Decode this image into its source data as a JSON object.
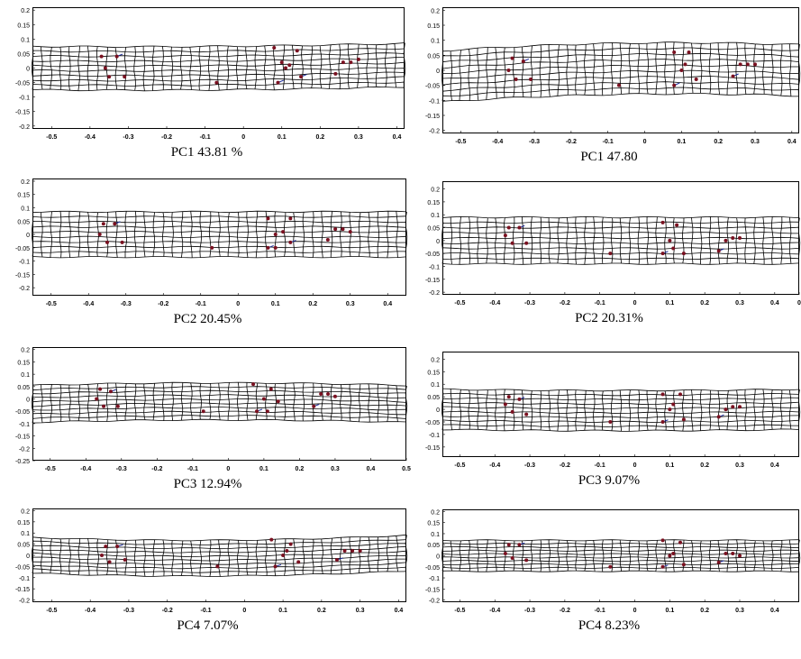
{
  "figure": {
    "panels": [
      {
        "caption": "PC1 43.81 %",
        "xticks": [
          "-0.5",
          "-0.4",
          "-0.3",
          "-0.2",
          "-0.1",
          "0",
          "0.1",
          "0.2",
          "0.3",
          "0.4"
        ],
        "yticks": [
          "0.2",
          "0.15",
          "0.1",
          "0.05",
          "0",
          "-0.05",
          "-0.1",
          "-0.15",
          "-0.2"
        ]
      },
      {
        "caption": "PC1 47.80",
        "xticks": [
          "-0.5",
          "-0.4",
          "-0.3",
          "-0.2",
          "-0.1",
          "0",
          "0.1",
          "0.2",
          "0.3",
          "0.4"
        ],
        "yticks": [
          "0.2",
          "0.15",
          "0.1",
          "0.05",
          "0",
          "-0.05",
          "-0.1",
          "-0.15",
          "-0.2"
        ]
      },
      {
        "caption": "PC2 20.45%",
        "xticks": [
          "-0.5",
          "-0.4",
          "-0.3",
          "-0.2",
          "-0.1",
          "0",
          "0.1",
          "0.2",
          "0.3",
          "0.4"
        ],
        "yticks": [
          "0.2",
          "0.15",
          "0.1",
          "0.05",
          "0",
          "-0.05",
          "-0.1",
          "-0.15",
          "-0.2"
        ]
      },
      {
        "caption": "PC2 20.31%",
        "xticks": [
          "-0.5",
          "-0.4",
          "-0.3",
          "-0.2",
          "-0.1",
          "0",
          "0.1",
          "0.2",
          "0.3",
          "0.4",
          "0"
        ],
        "yticks": [
          "0.2",
          "0.15",
          "0.1",
          "0.05",
          "0",
          "-0.05",
          "-0.1",
          "-0.15",
          "-0.2"
        ]
      },
      {
        "caption": "PC3 12.94%",
        "xticks": [
          "-0.5",
          "-0.4",
          "-0.3",
          "-0.2",
          "-0.1",
          "0",
          "0.1",
          "0.2",
          "0.3",
          "0.4",
          "0.5"
        ],
        "yticks": [
          "0.2",
          "0.15",
          "0.1",
          "0.05",
          "0",
          "-0.05",
          "-0.1",
          "-0.15",
          "-0.2",
          "-0.25"
        ]
      },
      {
        "caption": "PC3 9.07%",
        "xticks": [
          "-0.5",
          "-0.4",
          "-0.3",
          "-0.2",
          "-0.1",
          "0",
          "0.1",
          "0.2",
          "0.3",
          "0.4"
        ],
        "yticks": [
          "0.2",
          "0.15",
          "0.1",
          "0.05",
          "0",
          "-0.05",
          "-0.1",
          "-0.15"
        ]
      },
      {
        "caption": "PC4 7.07%",
        "xticks": [
          "-0.5",
          "-0.4",
          "-0.3",
          "-0.2",
          "-0.1",
          "0",
          "0.1",
          "0.2",
          "0.3",
          "0.4"
        ],
        "yticks": [
          "0.2",
          "0.15",
          "0.1",
          "0.05",
          "0",
          "-0.05",
          "-0.1",
          "-0.15",
          "-0.2"
        ]
      },
      {
        "caption": "PC4 8.23%",
        "xticks": [
          "-0.5",
          "-0.4",
          "-0.3",
          "-0.2",
          "-0.1",
          "0",
          "0.1",
          "0.2",
          "0.3",
          "0.4"
        ],
        "yticks": [
          "0.2",
          "0.15",
          "0.1",
          "0.05",
          "0",
          "-0.05",
          "-0.1",
          "-0.15",
          "-0.2"
        ]
      }
    ],
    "colors": {
      "grid": "#000000",
      "landmark": "#7a1020",
      "vector": "#1a2a9a"
    }
  },
  "chart_data": [
    {
      "type": "scatter",
      "title": "PC1 43.81 %",
      "xlim": [
        -0.55,
        0.42
      ],
      "ylim": [
        -0.21,
        0.21
      ],
      "landmarks": [
        [
          -0.37,
          0.04
        ],
        [
          -0.36,
          0.0
        ],
        [
          -0.33,
          0.04
        ],
        [
          -0.35,
          -0.03
        ],
        [
          -0.31,
          -0.03
        ],
        [
          -0.07,
          -0.05
        ],
        [
          0.08,
          0.07
        ],
        [
          0.09,
          -0.05
        ],
        [
          0.1,
          0.02
        ],
        [
          0.11,
          0.0
        ],
        [
          0.12,
          0.01
        ],
        [
          0.14,
          0.06
        ],
        [
          0.15,
          -0.03
        ],
        [
          0.24,
          -0.02
        ],
        [
          0.26,
          0.02
        ],
        [
          0.28,
          0.02
        ],
        [
          0.3,
          0.03
        ]
      ]
    },
    {
      "type": "scatter",
      "title": "PC1 47.80",
      "xlim": [
        -0.55,
        0.42
      ],
      "ylim": [
        -0.21,
        0.21
      ],
      "landmarks": [
        [
          -0.37,
          0.0
        ],
        [
          -0.36,
          0.04
        ],
        [
          -0.33,
          0.03
        ],
        [
          -0.35,
          -0.03
        ],
        [
          -0.31,
          -0.03
        ],
        [
          -0.07,
          -0.05
        ],
        [
          0.08,
          0.06
        ],
        [
          0.08,
          -0.05
        ],
        [
          0.1,
          0.0
        ],
        [
          0.11,
          0.02
        ],
        [
          0.12,
          0.06
        ],
        [
          0.14,
          -0.03
        ],
        [
          0.24,
          -0.02
        ],
        [
          0.26,
          0.02
        ],
        [
          0.28,
          0.02
        ],
        [
          0.3,
          0.02
        ]
      ]
    },
    {
      "type": "scatter",
      "title": "PC2 20.45%",
      "xlim": [
        -0.55,
        0.45
      ],
      "ylim": [
        -0.23,
        0.21
      ],
      "landmarks": [
        [
          -0.37,
          0.0
        ],
        [
          -0.36,
          0.04
        ],
        [
          -0.33,
          0.04
        ],
        [
          -0.35,
          -0.03
        ],
        [
          -0.31,
          -0.03
        ],
        [
          -0.07,
          -0.05
        ],
        [
          0.08,
          0.06
        ],
        [
          0.08,
          -0.05
        ],
        [
          0.1,
          -0.05
        ],
        [
          0.1,
          0.0
        ],
        [
          0.12,
          0.01
        ],
        [
          0.14,
          0.06
        ],
        [
          0.14,
          -0.03
        ],
        [
          0.24,
          -0.02
        ],
        [
          0.26,
          0.02
        ],
        [
          0.28,
          0.02
        ],
        [
          0.3,
          0.01
        ]
      ]
    },
    {
      "type": "scatter",
      "title": "PC2 20.31%",
      "xlim": [
        -0.55,
        0.47
      ],
      "ylim": [
        -0.21,
        0.23
      ],
      "landmarks": [
        [
          -0.37,
          0.02
        ],
        [
          -0.36,
          0.05
        ],
        [
          -0.33,
          0.05
        ],
        [
          -0.35,
          -0.01
        ],
        [
          -0.31,
          -0.01
        ],
        [
          -0.07,
          -0.05
        ],
        [
          0.08,
          0.07
        ],
        [
          0.08,
          -0.05
        ],
        [
          0.1,
          0.0
        ],
        [
          0.11,
          -0.03
        ],
        [
          0.12,
          0.06
        ],
        [
          0.14,
          -0.05
        ],
        [
          0.24,
          -0.04
        ],
        [
          0.26,
          0.0
        ],
        [
          0.28,
          0.01
        ],
        [
          0.3,
          0.01
        ]
      ]
    },
    {
      "type": "scatter",
      "title": "PC3 12.94%",
      "xlim": [
        -0.55,
        0.5
      ],
      "ylim": [
        -0.25,
        0.21
      ],
      "landmarks": [
        [
          -0.37,
          0.0
        ],
        [
          -0.36,
          0.04
        ],
        [
          -0.33,
          0.03
        ],
        [
          -0.35,
          -0.03
        ],
        [
          -0.31,
          -0.03
        ],
        [
          -0.07,
          -0.05
        ],
        [
          0.07,
          0.06
        ],
        [
          0.08,
          -0.05
        ],
        [
          0.1,
          0.0
        ],
        [
          0.11,
          -0.05
        ],
        [
          0.12,
          0.04
        ],
        [
          0.14,
          -0.01
        ],
        [
          0.24,
          -0.03
        ],
        [
          0.26,
          0.02
        ],
        [
          0.28,
          0.02
        ],
        [
          0.3,
          0.01
        ]
      ]
    },
    {
      "type": "scatter",
      "title": "PC3 9.07%",
      "xlim": [
        -0.55,
        0.47
      ],
      "ylim": [
        -0.19,
        0.23
      ],
      "landmarks": [
        [
          -0.37,
          0.02
        ],
        [
          -0.36,
          0.05
        ],
        [
          -0.33,
          0.04
        ],
        [
          -0.35,
          -0.01
        ],
        [
          -0.31,
          -0.02
        ],
        [
          -0.07,
          -0.05
        ],
        [
          0.08,
          0.06
        ],
        [
          0.08,
          -0.05
        ],
        [
          0.1,
          0.0
        ],
        [
          0.11,
          0.02
        ],
        [
          0.13,
          0.06
        ],
        [
          0.14,
          -0.04
        ],
        [
          0.24,
          -0.03
        ],
        [
          0.26,
          0.0
        ],
        [
          0.28,
          0.01
        ],
        [
          0.3,
          0.01
        ]
      ]
    },
    {
      "type": "scatter",
      "title": "PC4 7.07%",
      "xlim": [
        -0.55,
        0.42
      ],
      "ylim": [
        -0.21,
        0.21
      ],
      "landmarks": [
        [
          -0.37,
          0.0
        ],
        [
          -0.36,
          0.04
        ],
        [
          -0.33,
          0.04
        ],
        [
          -0.35,
          -0.03
        ],
        [
          -0.31,
          -0.02
        ],
        [
          -0.07,
          -0.05
        ],
        [
          0.07,
          0.07
        ],
        [
          0.08,
          -0.05
        ],
        [
          0.1,
          0.0
        ],
        [
          0.11,
          0.02
        ],
        [
          0.12,
          0.05
        ],
        [
          0.14,
          -0.03
        ],
        [
          0.24,
          -0.02
        ],
        [
          0.26,
          0.02
        ],
        [
          0.28,
          0.02
        ],
        [
          0.3,
          0.02
        ]
      ]
    },
    {
      "type": "scatter",
      "title": "PC4 8.23%",
      "xlim": [
        -0.55,
        0.47
      ],
      "ylim": [
        -0.21,
        0.21
      ],
      "landmarks": [
        [
          -0.37,
          0.01
        ],
        [
          -0.36,
          0.05
        ],
        [
          -0.33,
          0.05
        ],
        [
          -0.35,
          -0.01
        ],
        [
          -0.31,
          -0.02
        ],
        [
          -0.07,
          -0.05
        ],
        [
          0.08,
          0.07
        ],
        [
          0.08,
          -0.05
        ],
        [
          0.1,
          0.0
        ],
        [
          0.11,
          0.01
        ],
        [
          0.13,
          0.06
        ],
        [
          0.14,
          -0.04
        ],
        [
          0.24,
          -0.03
        ],
        [
          0.26,
          0.01
        ],
        [
          0.28,
          0.01
        ],
        [
          0.3,
          0.0
        ]
      ]
    }
  ]
}
